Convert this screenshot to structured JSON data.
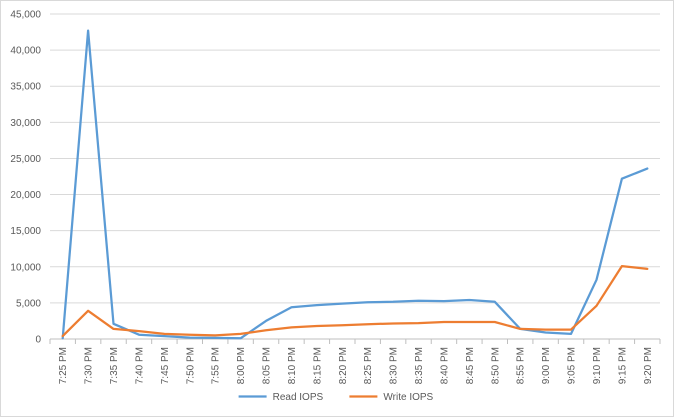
{
  "chart_data": {
    "type": "line",
    "title": "",
    "xlabel": "",
    "ylabel": "",
    "ylim": [
      0,
      45000
    ],
    "yticks": [
      0,
      5000,
      10000,
      15000,
      20000,
      25000,
      30000,
      35000,
      40000,
      45000
    ],
    "ytick_labels": [
      "0",
      "5,000",
      "10,000",
      "15,000",
      "20,000",
      "25,000",
      "30,000",
      "35,000",
      "40,000",
      "45,000"
    ],
    "grid": "horizontal",
    "legend_position": "bottom",
    "categories": [
      "7:25 PM",
      "7:30 PM",
      "7:35 PM",
      "7:40 PM",
      "7:45 PM",
      "7:50 PM",
      "7:55 PM",
      "8:00 PM",
      "8:05 PM",
      "8:10 PM",
      "8:15 PM",
      "8:20 PM",
      "8:25 PM",
      "8:30 PM",
      "8:35 PM",
      "8:40 PM",
      "8:45 PM",
      "8:50 PM",
      "8:55 PM",
      "9:00 PM",
      "9:05 PM",
      "9:10 PM",
      "9:15 PM",
      "9:20 PM"
    ],
    "series": [
      {
        "name": "Read IOPS",
        "color": "#5b9bd5",
        "values": [
          100,
          42700,
          2100,
          600,
          400,
          200,
          150,
          100,
          2500,
          4400,
          4700,
          4900,
          5100,
          5150,
          5300,
          5250,
          5400,
          5150,
          1400,
          900,
          700,
          8200,
          22200,
          23600
        ]
      },
      {
        "name": "Write IOPS",
        "color": "#ed7d31",
        "values": [
          400,
          3900,
          1400,
          1100,
          700,
          600,
          500,
          700,
          1200,
          1600,
          1800,
          1900,
          2050,
          2150,
          2200,
          2350,
          2350,
          2350,
          1400,
          1300,
          1300,
          4600,
          10100,
          9700
        ]
      }
    ]
  }
}
